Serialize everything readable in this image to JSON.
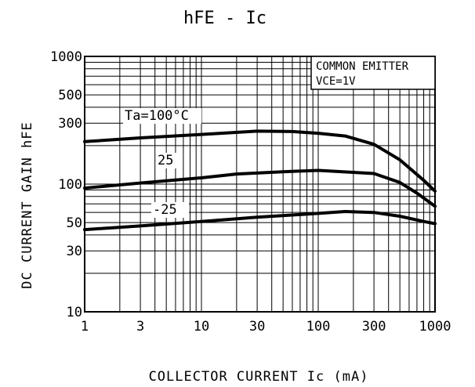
{
  "chart_data": {
    "type": "line",
    "title": "hFE - Ic",
    "xlabel": "COLLECTOR CURRENT Ic (mA)",
    "ylabel": "DC CURRENT GAIN hFE",
    "xscale": "log",
    "yscale": "log",
    "xlim": [
      1,
      1000
    ],
    "ylim": [
      10,
      1000
    ],
    "grid": true,
    "x_tick_labels": [
      "1",
      "3",
      "10",
      "30",
      "100",
      "300",
      "1000"
    ],
    "x_tick_values": [
      1,
      3,
      10,
      30,
      100,
      300,
      1000
    ],
    "y_tick_labels": [
      "1000",
      "500",
      "300",
      "100",
      "50",
      "30",
      "10"
    ],
    "y_tick_values": [
      1000,
      500,
      300,
      100,
      50,
      30,
      10
    ],
    "annotation": [
      "COMMON EMITTER",
      "VCE=1V"
    ],
    "series": [
      {
        "name": "Ta=100°C",
        "x": [
          1,
          3,
          10,
          30,
          60,
          100,
          170,
          300,
          500,
          800,
          1000
        ],
        "y": [
          215,
          230,
          245,
          260,
          258,
          250,
          238,
          205,
          155,
          107,
          88
        ]
      },
      {
        "name": "25",
        "x": [
          1,
          3,
          10,
          20,
          50,
          100,
          300,
          500,
          700,
          1000
        ],
        "y": [
          93,
          102,
          112,
          120,
          125,
          128,
          121,
          103,
          85,
          67
        ]
      },
      {
        "name": "-25",
        "x": [
          1,
          3,
          10,
          30,
          100,
          170,
          300,
          500,
          800,
          1000
        ],
        "y": [
          44,
          47,
          51,
          55,
          59,
          61,
          60,
          56,
          51,
          49
        ]
      }
    ]
  }
}
